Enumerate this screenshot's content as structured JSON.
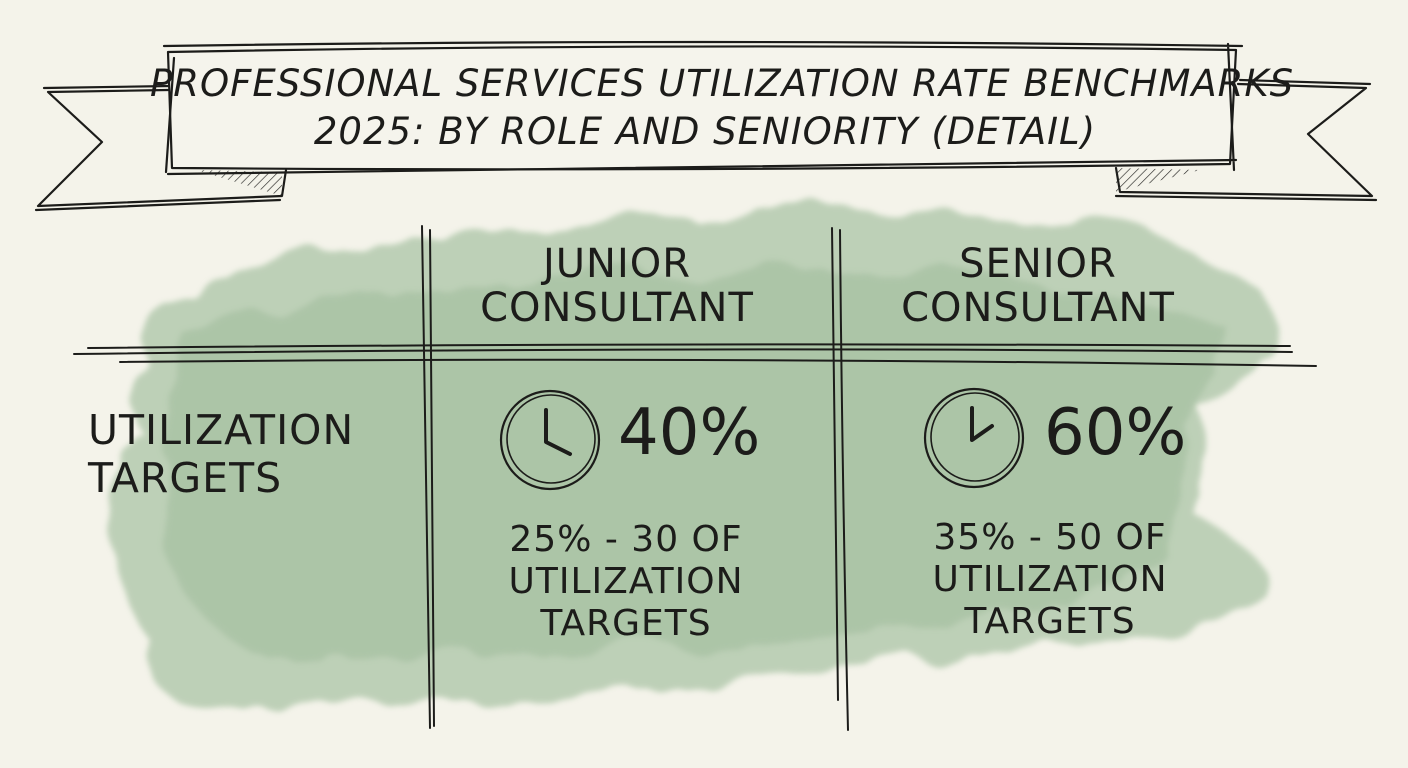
{
  "banner": {
    "title_line1": "Professional Services Utilization Rate Benchmarks",
    "title_line2": "2025: By Role and Seniority (Detail)"
  },
  "table": {
    "columns": [
      "Junior Consultant",
      "Senior Consultant"
    ],
    "row_label": [
      "Utilization",
      "Targets"
    ],
    "cells": [
      {
        "value": "40%",
        "icon": "clock-icon",
        "range": [
          "25% - 30 of",
          "Utilization",
          "Targets"
        ]
      },
      {
        "value": "60%",
        "icon": "clock-icon",
        "range": [
          "35% - 50 of",
          "Utilization",
          "Targets"
        ]
      }
    ]
  },
  "colors": {
    "paper": "#f4f3ea",
    "watercolor": "#a9c3a4",
    "ink": "#1c1c1a"
  }
}
